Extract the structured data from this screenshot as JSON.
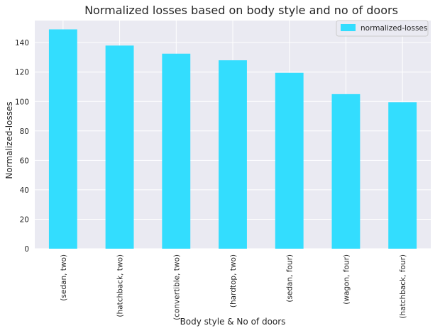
{
  "chart_data": {
    "type": "bar",
    "title": "Normalized losses based on body style and no of doors",
    "xlabel": "Body style & No of doors",
    "ylabel": "Normalized-losses",
    "categories": [
      "(sedan, two)",
      "(hatchback, two)",
      "(convertible, two)",
      "(hardtop, two)",
      "(sedan, four)",
      "(wagon, four)",
      "(hatchback, four)"
    ],
    "series": [
      {
        "name": "normalized-losses",
        "values": [
          149,
          138,
          132.5,
          128,
          119.5,
          105,
          99.5
        ]
      }
    ],
    "ylim": [
      0,
      155
    ],
    "yticks": [
      0,
      20,
      40,
      60,
      80,
      100,
      120,
      140
    ],
    "grid": true,
    "legend_position": "top-right",
    "bar_color": "#33ddfe",
    "background_color": "#eaeaf2",
    "grid_color": "#ffffff"
  }
}
